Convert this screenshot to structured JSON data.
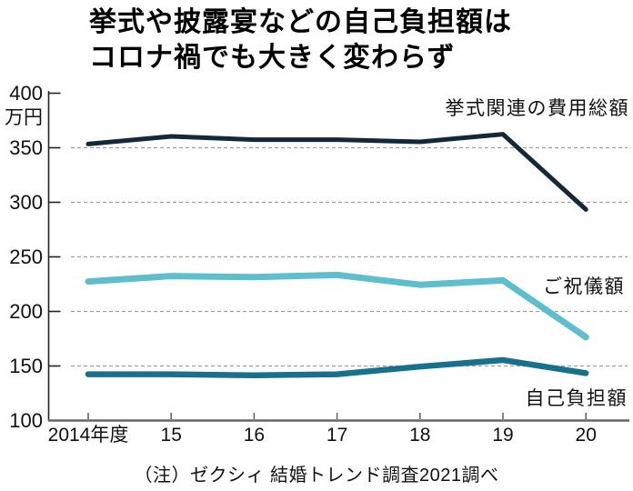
{
  "title": {
    "line1": "挙式や披露宴などの自己負担額は",
    "line2": "コロナ禍でも大きく変わらず"
  },
  "footer": {
    "note": "（注）ゼクシィ 結婚トレンド調査2021調べ"
  },
  "chart_data": {
    "type": "line",
    "title": "挙式や披露宴などの自己負担額はコロナ禍でも大きく変わらず",
    "xlabel": "",
    "ylabel": "万円",
    "x_categories": [
      "2014年度",
      "15",
      "16",
      "17",
      "18",
      "19",
      "20"
    ],
    "ylim": [
      100,
      400
    ],
    "y_ticks": [
      400,
      350,
      300,
      250,
      200,
      150,
      100
    ],
    "gridline_values": [
      350,
      300,
      250,
      200,
      150
    ],
    "grid": "horizontal-dashed",
    "legend_position": "inline-right",
    "series": [
      {
        "name": "挙式関連の費用総額",
        "color": "#13293a",
        "stroke_width": 5,
        "values": [
          353,
          360,
          357,
          357,
          355,
          362,
          293
        ]
      },
      {
        "name": "ご祝儀額",
        "color": "#5dbecd",
        "stroke_width": 7,
        "values": [
          227,
          232,
          231,
          233,
          224,
          228,
          176
        ]
      },
      {
        "name": "自己負担額",
        "color": "#17718c",
        "stroke_width": 6.5,
        "values": [
          142,
          142,
          141,
          142,
          149,
          155,
          143
        ]
      }
    ],
    "colors": {
      "grid": "#a0a0a0",
      "y_axis": "#222222",
      "x_axis": "#666666",
      "tick_label": "#111111"
    }
  }
}
